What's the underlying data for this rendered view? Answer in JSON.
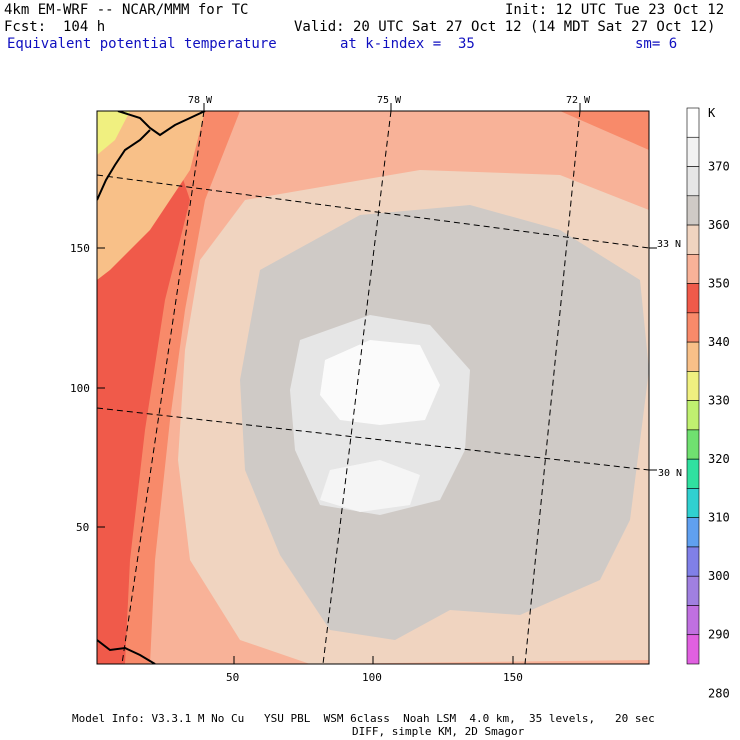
{
  "header": {
    "line1_left": "4km EM-WRF -- NCAR/MMM for TC",
    "line1_right": "Init: 12 UTC Tue 23 Oct 12",
    "line2_left": "Fcst:  104 h",
    "line2_right": "Valid: 20 UTC Sat 27 Oct 12 (14 MDT Sat 27 Oct 12)",
    "field": "Equivalent potential temperature",
    "kindex": "at k-index =  35",
    "sm": "sm= 6"
  },
  "map": {
    "lon_labels": [
      "78 W",
      "75 W",
      "72 W"
    ],
    "lat_labels": [
      "33 N",
      "30 N"
    ],
    "x_ticks": [
      "50",
      "100",
      "150"
    ],
    "y_ticks": [
      "150",
      "100",
      "50"
    ],
    "colors": {
      "outer": "#f05a4a",
      "ring": "#f88a6a",
      "salmon": "#f8b298",
      "beige": "#f0d4c0",
      "gray": "#cfcac6",
      "lightgray": "#e6e6e6",
      "white": "#fbfbfb",
      "orange": "#f8c088",
      "yellow": "#f0f080",
      "ocean_line": "#000000"
    }
  },
  "legend": {
    "unit": "K",
    "labels": [
      "370",
      "360",
      "350",
      "340",
      "330",
      "320",
      "310",
      "300",
      "290",
      "280"
    ],
    "bins": [
      "#ffffff",
      "#f2f2f2",
      "#e6e6e6",
      "#cfcac6",
      "#f0d4c0",
      "#f8b298",
      "#f05a4a",
      "#f88a6a",
      "#f8c088",
      "#f0f080",
      "#c0f070",
      "#70e070",
      "#30e0a0",
      "#30d0d0",
      "#60a0f0",
      "#8080e8",
      "#a080e0",
      "#c070e0",
      "#e060e0"
    ]
  },
  "footer": {
    "line1": "Model Info: V3.3.1 M No Cu   YSU PBL  WSM 6class  Noah LSM  4.0 km,  35 levels,   20 sec",
    "line2": "DIFF, simple KM, 2D Smagor"
  }
}
